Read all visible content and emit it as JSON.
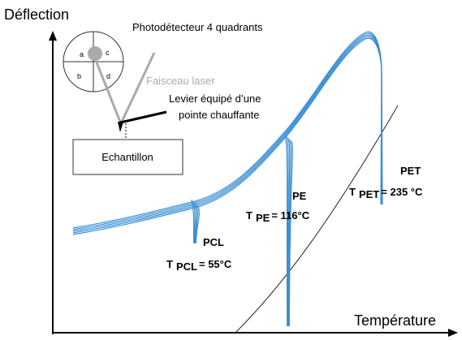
{
  "axes": {
    "y_label": "Déflection",
    "x_label": "Température"
  },
  "inset": {
    "detector_label": "Photodétecteur 4 quadrants",
    "quadrants": [
      "a",
      "b",
      "c",
      "d"
    ],
    "beam_label": "Faisceau laser",
    "lever_label_lines": [
      "Levier équipé d’une",
      "pointe chauffante"
    ],
    "sample_label": "Echantillon"
  },
  "curves": [
    {
      "name": "PCL",
      "symbol": "T",
      "subscript": "PCL",
      "value": "= 55°C"
    },
    {
      "name": "PE",
      "symbol": "T",
      "subscript": "PE",
      "value": "= 116°C"
    },
    {
      "name": "PET",
      "symbol": "T",
      "subscript": "PET",
      "value": "= 235 °C"
    }
  ]
}
